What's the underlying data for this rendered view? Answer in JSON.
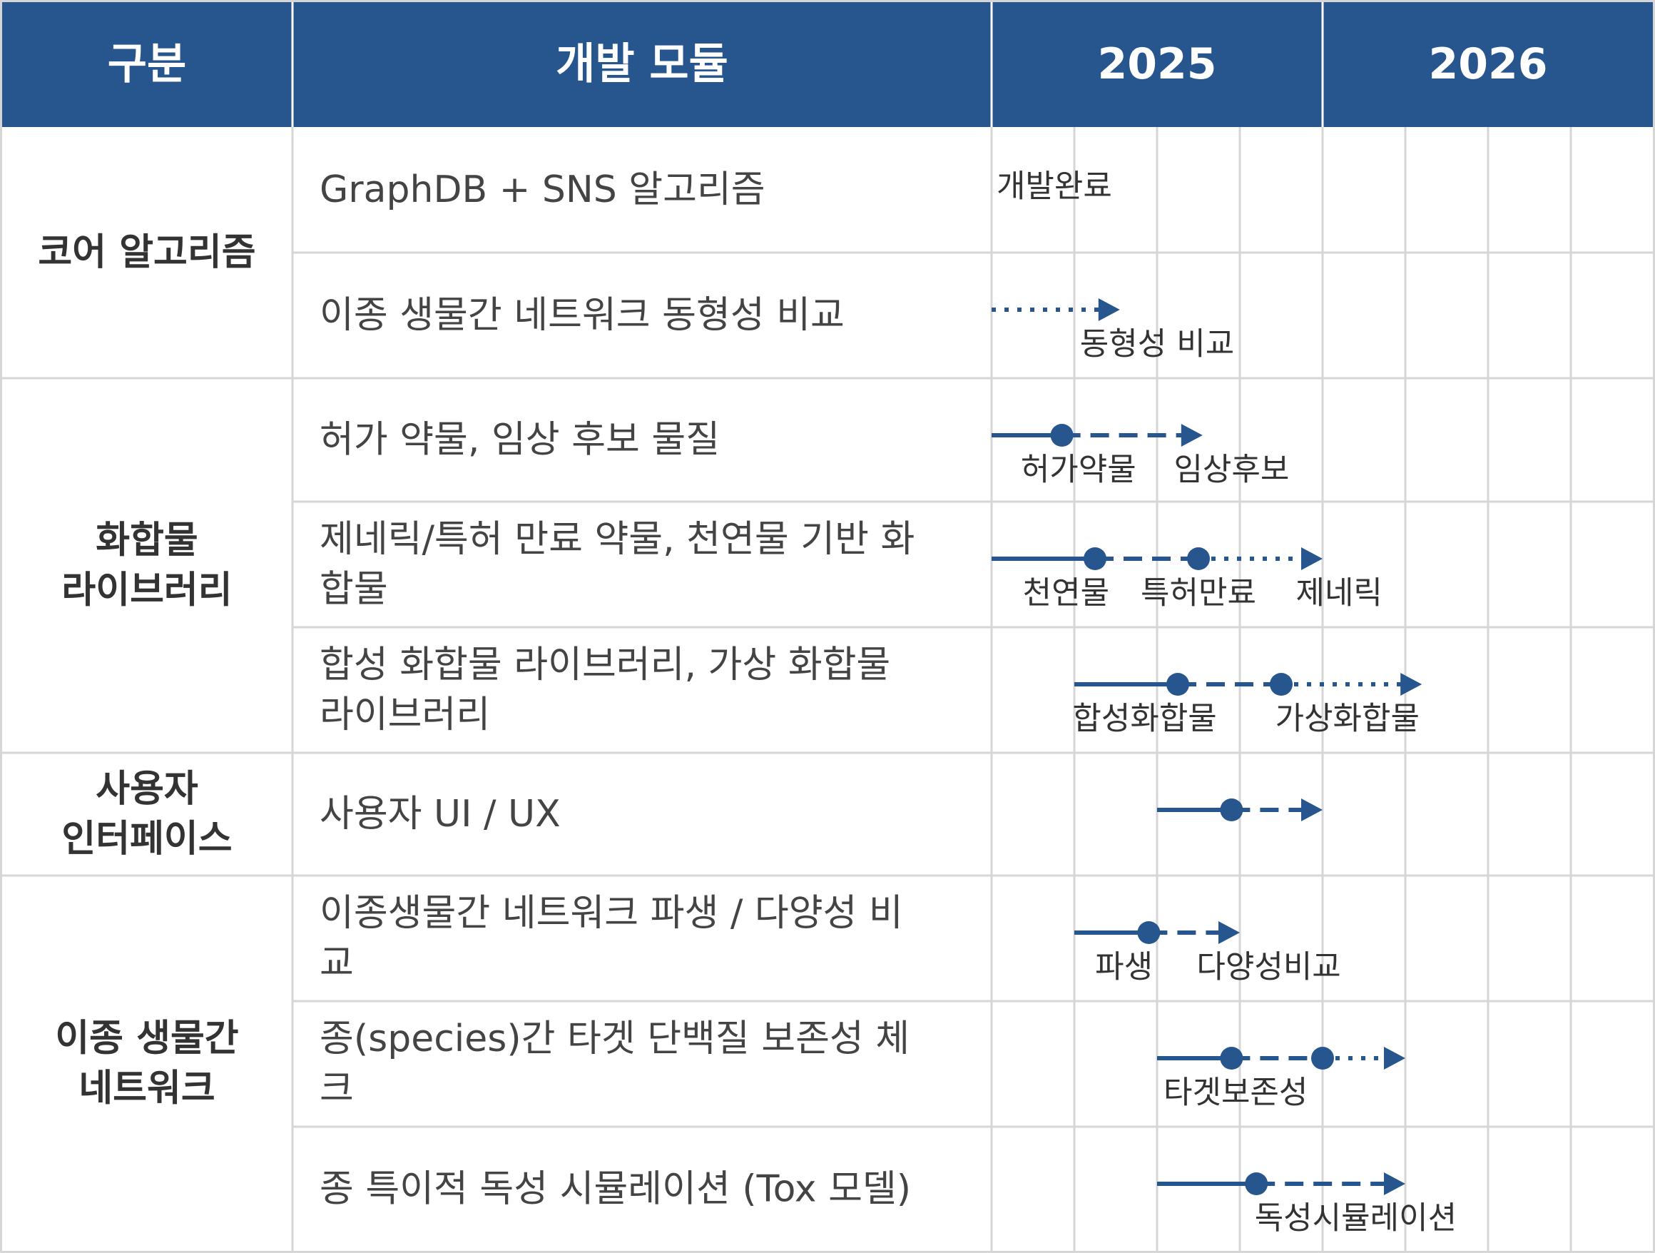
{
  "colors": {
    "header_bg": "#27568f",
    "header_text": "#ffffff",
    "grid": "#d6d6d6",
    "line": "#27568f",
    "category_text": "#333333",
    "module_text": "#444444",
    "label_text": "#333333"
  },
  "header": {
    "category": "구분",
    "module": "개발 모듈",
    "years": [
      "2025",
      "2026"
    ]
  },
  "categories": [
    {
      "label_lines": [
        "코어 알고리즘"
      ],
      "rows": [
        0,
        1
      ]
    },
    {
      "label_lines": [
        "화합물",
        "라이브러리"
      ],
      "rows": [
        2,
        3,
        4
      ]
    },
    {
      "label_lines": [
        "사용자",
        "인터페이스"
      ],
      "rows": [
        5,
        5
      ]
    },
    {
      "label_lines": [
        "이종 생물간",
        "네트워크"
      ],
      "rows": [
        6,
        8
      ]
    }
  ],
  "modules": [
    {
      "lines": [
        "GraphDB + SNS 알고리즘"
      ],
      "segments": [],
      "milestones": [],
      "labels": [
        {
          "text": "개발완료",
          "slot": 0.06,
          "align": "start",
          "pos": "center"
        }
      ]
    },
    {
      "lines": [
        "이종 생물간 네트워크 동형성 비교"
      ],
      "segments": [
        {
          "style": "dotted",
          "from": 0,
          "to": 1.55,
          "arrow": true
        }
      ],
      "milestones": [],
      "labels": [
        {
          "text": "동형성 비교",
          "slot": 2.0,
          "align": "middle",
          "pos": "below"
        }
      ]
    },
    {
      "lines": [
        "허가 약물, 임상 후보 물질"
      ],
      "segments": [
        {
          "style": "solid",
          "from": 0,
          "to": 0.85,
          "arrow": false
        },
        {
          "style": "dashed",
          "from": 0.85,
          "to": 2.55,
          "arrow": true
        }
      ],
      "milestones": [
        0.85
      ],
      "labels": [
        {
          "text": "허가약물",
          "slot": 1.05,
          "align": "middle",
          "pos": "below"
        },
        {
          "text": "임상후보",
          "slot": 2.9,
          "align": "middle",
          "pos": "below"
        }
      ]
    },
    {
      "lines": [
        "제네릭/특허 만료 약물, 천연물 기반 화",
        "합물"
      ],
      "segments": [
        {
          "style": "solid",
          "from": 0,
          "to": 1.25,
          "arrow": false
        },
        {
          "style": "dashed",
          "from": 1.25,
          "to": 2.5,
          "arrow": false
        },
        {
          "style": "dotted",
          "from": 2.5,
          "to": 4.0,
          "arrow": true
        }
      ],
      "milestones": [
        1.25,
        2.5
      ],
      "labels": [
        {
          "text": "천연물",
          "slot": 0.9,
          "align": "middle",
          "pos": "below"
        },
        {
          "text": "특허만료",
          "slot": 2.5,
          "align": "middle",
          "pos": "below"
        },
        {
          "text": "제네릭",
          "slot": 4.2,
          "align": "middle",
          "pos": "below"
        }
      ]
    },
    {
      "lines": [
        "합성 화합물 라이브러리, 가상 화합물",
        "라이브러리"
      ],
      "segments": [
        {
          "style": "solid",
          "from": 1.0,
          "to": 2.25,
          "arrow": false
        },
        {
          "style": "dashed",
          "from": 2.25,
          "to": 3.5,
          "arrow": false
        },
        {
          "style": "dotted",
          "from": 3.5,
          "to": 5.2,
          "arrow": true
        }
      ],
      "milestones": [
        2.25,
        3.5
      ],
      "labels": [
        {
          "text": "합성화합물",
          "slot": 1.85,
          "align": "middle",
          "pos": "below"
        },
        {
          "text": "가상화합물",
          "slot": 4.3,
          "align": "middle",
          "pos": "below"
        }
      ]
    },
    {
      "lines": [
        "사용자 UI / UX"
      ],
      "segments": [
        {
          "style": "solid",
          "from": 2.0,
          "to": 2.9,
          "arrow": false
        },
        {
          "style": "dashed",
          "from": 2.9,
          "to": 4.0,
          "arrow": true
        }
      ],
      "milestones": [
        2.9
      ],
      "labels": []
    },
    {
      "lines": [
        "이종생물간 네트워크 파생 / 다양성 비",
        "교"
      ],
      "segments": [
        {
          "style": "solid",
          "from": 1.0,
          "to": 1.9,
          "arrow": false
        },
        {
          "style": "dashed",
          "from": 1.9,
          "to": 3.0,
          "arrow": true
        }
      ],
      "milestones": [
        1.9
      ],
      "labels": [
        {
          "text": "파생",
          "slot": 1.6,
          "align": "middle",
          "pos": "below"
        },
        {
          "text": "다양성비교",
          "slot": 3.35,
          "align": "middle",
          "pos": "below"
        }
      ]
    },
    {
      "lines": [
        "종(species)간 타겟 단백질 보존성 체",
        "크"
      ],
      "segments": [
        {
          "style": "solid",
          "from": 2.0,
          "to": 2.9,
          "arrow": false
        },
        {
          "style": "dashed",
          "from": 2.9,
          "to": 4.0,
          "arrow": false
        },
        {
          "style": "dotted",
          "from": 4.0,
          "to": 5.0,
          "arrow": true
        }
      ],
      "milestones": [
        2.9,
        4.0
      ],
      "labels": [
        {
          "text": "타겟보존성",
          "slot": 2.95,
          "align": "middle",
          "pos": "below"
        }
      ]
    },
    {
      "lines": [
        "종 특이적 독성 시뮬레이션 (Tox 모델)"
      ],
      "segments": [
        {
          "style": "solid",
          "from": 2.0,
          "to": 3.2,
          "arrow": false
        },
        {
          "style": "dashed",
          "from": 3.2,
          "to": 5.0,
          "arrow": true
        }
      ],
      "milestones": [
        3.2
      ],
      "labels": [
        {
          "text": "독성시뮬레이션",
          "slot": 4.4,
          "align": "middle",
          "pos": "below"
        }
      ]
    }
  ]
}
